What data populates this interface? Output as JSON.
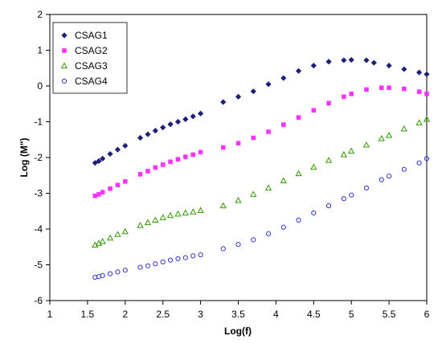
{
  "chart_data": {
    "type": "scatter",
    "title": "",
    "xlabel": "Log(f)",
    "ylabel": "Log (M\")",
    "xlim": [
      1,
      6
    ],
    "ylim": [
      -6,
      2
    ],
    "xticks": [
      "1",
      "1.5",
      "2",
      "2.5",
      "3",
      "3.5",
      "4",
      "4.5",
      "5",
      "5.5",
      "6"
    ],
    "yticks": [
      "2",
      "1",
      "0",
      "-1",
      "-2",
      "-3",
      "-4",
      "-5",
      "-6"
    ],
    "grid": false,
    "legend_position": "top-left",
    "series": [
      {
        "name": "CSAG1",
        "marker": "diamond",
        "color": "#1f1f7a",
        "x": [
          1.6,
          1.65,
          1.7,
          1.8,
          1.9,
          2.0,
          2.2,
          2.3,
          2.4,
          2.5,
          2.6,
          2.7,
          2.8,
          2.9,
          3.0,
          3.3,
          3.5,
          3.7,
          3.9,
          4.1,
          4.3,
          4.5,
          4.7,
          4.9,
          5.0,
          5.2,
          5.3,
          5.5,
          5.7,
          5.9,
          6.0
        ],
        "y": [
          -2.15,
          -2.1,
          -2.03,
          -1.9,
          -1.78,
          -1.67,
          -1.45,
          -1.35,
          -1.25,
          -1.16,
          -1.07,
          -1.0,
          -0.93,
          -0.85,
          -0.77,
          -0.45,
          -0.3,
          -0.15,
          0.05,
          0.22,
          0.42,
          0.57,
          0.68,
          0.72,
          0.73,
          0.72,
          0.65,
          0.57,
          0.47,
          0.38,
          0.33
        ]
      },
      {
        "name": "CSAG2",
        "marker": "square",
        "color": "#ff33ff",
        "x": [
          1.6,
          1.65,
          1.7,
          1.8,
          1.9,
          2.0,
          2.2,
          2.3,
          2.4,
          2.5,
          2.6,
          2.7,
          2.8,
          2.9,
          3.0,
          3.3,
          3.5,
          3.7,
          3.9,
          4.1,
          4.3,
          4.5,
          4.7,
          4.9,
          5.0,
          5.2,
          5.4,
          5.5,
          5.7,
          5.9,
          6.0
        ],
        "y": [
          -3.07,
          -3.03,
          -2.97,
          -2.87,
          -2.77,
          -2.67,
          -2.47,
          -2.38,
          -2.28,
          -2.2,
          -2.12,
          -2.05,
          -1.98,
          -1.92,
          -1.85,
          -1.72,
          -1.6,
          -1.45,
          -1.28,
          -1.08,
          -0.88,
          -0.68,
          -0.48,
          -0.3,
          -0.22,
          -0.1,
          -0.05,
          -0.05,
          -0.08,
          -0.16,
          -0.22
        ]
      },
      {
        "name": "CSAG3",
        "marker": "triangle",
        "color": "#339900",
        "x": [
          1.6,
          1.65,
          1.7,
          1.8,
          1.9,
          2.0,
          2.2,
          2.3,
          2.4,
          2.5,
          2.6,
          2.7,
          2.8,
          2.9,
          3.0,
          3.3,
          3.5,
          3.7,
          3.9,
          4.1,
          4.3,
          4.5,
          4.7,
          4.9,
          5.0,
          5.2,
          5.4,
          5.5,
          5.7,
          5.9,
          6.0
        ],
        "y": [
          -4.45,
          -4.4,
          -4.35,
          -4.25,
          -4.15,
          -4.07,
          -3.9,
          -3.82,
          -3.75,
          -3.68,
          -3.62,
          -3.58,
          -3.55,
          -3.52,
          -3.48,
          -3.35,
          -3.2,
          -3.03,
          -2.85,
          -2.65,
          -2.45,
          -2.27,
          -2.08,
          -1.92,
          -1.82,
          -1.65,
          -1.47,
          -1.38,
          -1.2,
          -1.03,
          -0.93
        ]
      },
      {
        "name": "CSAG4",
        "marker": "circle",
        "color": "#3333cc",
        "x": [
          1.6,
          1.65,
          1.7,
          1.8,
          1.9,
          2.0,
          2.2,
          2.3,
          2.4,
          2.5,
          2.6,
          2.7,
          2.8,
          2.9,
          3.0,
          3.3,
          3.5,
          3.7,
          3.9,
          4.1,
          4.3,
          4.5,
          4.7,
          4.9,
          5.0,
          5.2,
          5.4,
          5.5,
          5.7,
          5.9,
          6.0
        ],
        "y": [
          -5.35,
          -5.33,
          -5.3,
          -5.25,
          -5.2,
          -5.15,
          -5.07,
          -5.03,
          -4.97,
          -4.92,
          -4.87,
          -4.83,
          -4.8,
          -4.75,
          -4.72,
          -4.55,
          -4.43,
          -4.3,
          -4.13,
          -3.95,
          -3.75,
          -3.55,
          -3.35,
          -3.15,
          -3.05,
          -2.85,
          -2.62,
          -2.52,
          -2.33,
          -2.15,
          -2.03
        ]
      }
    ]
  }
}
